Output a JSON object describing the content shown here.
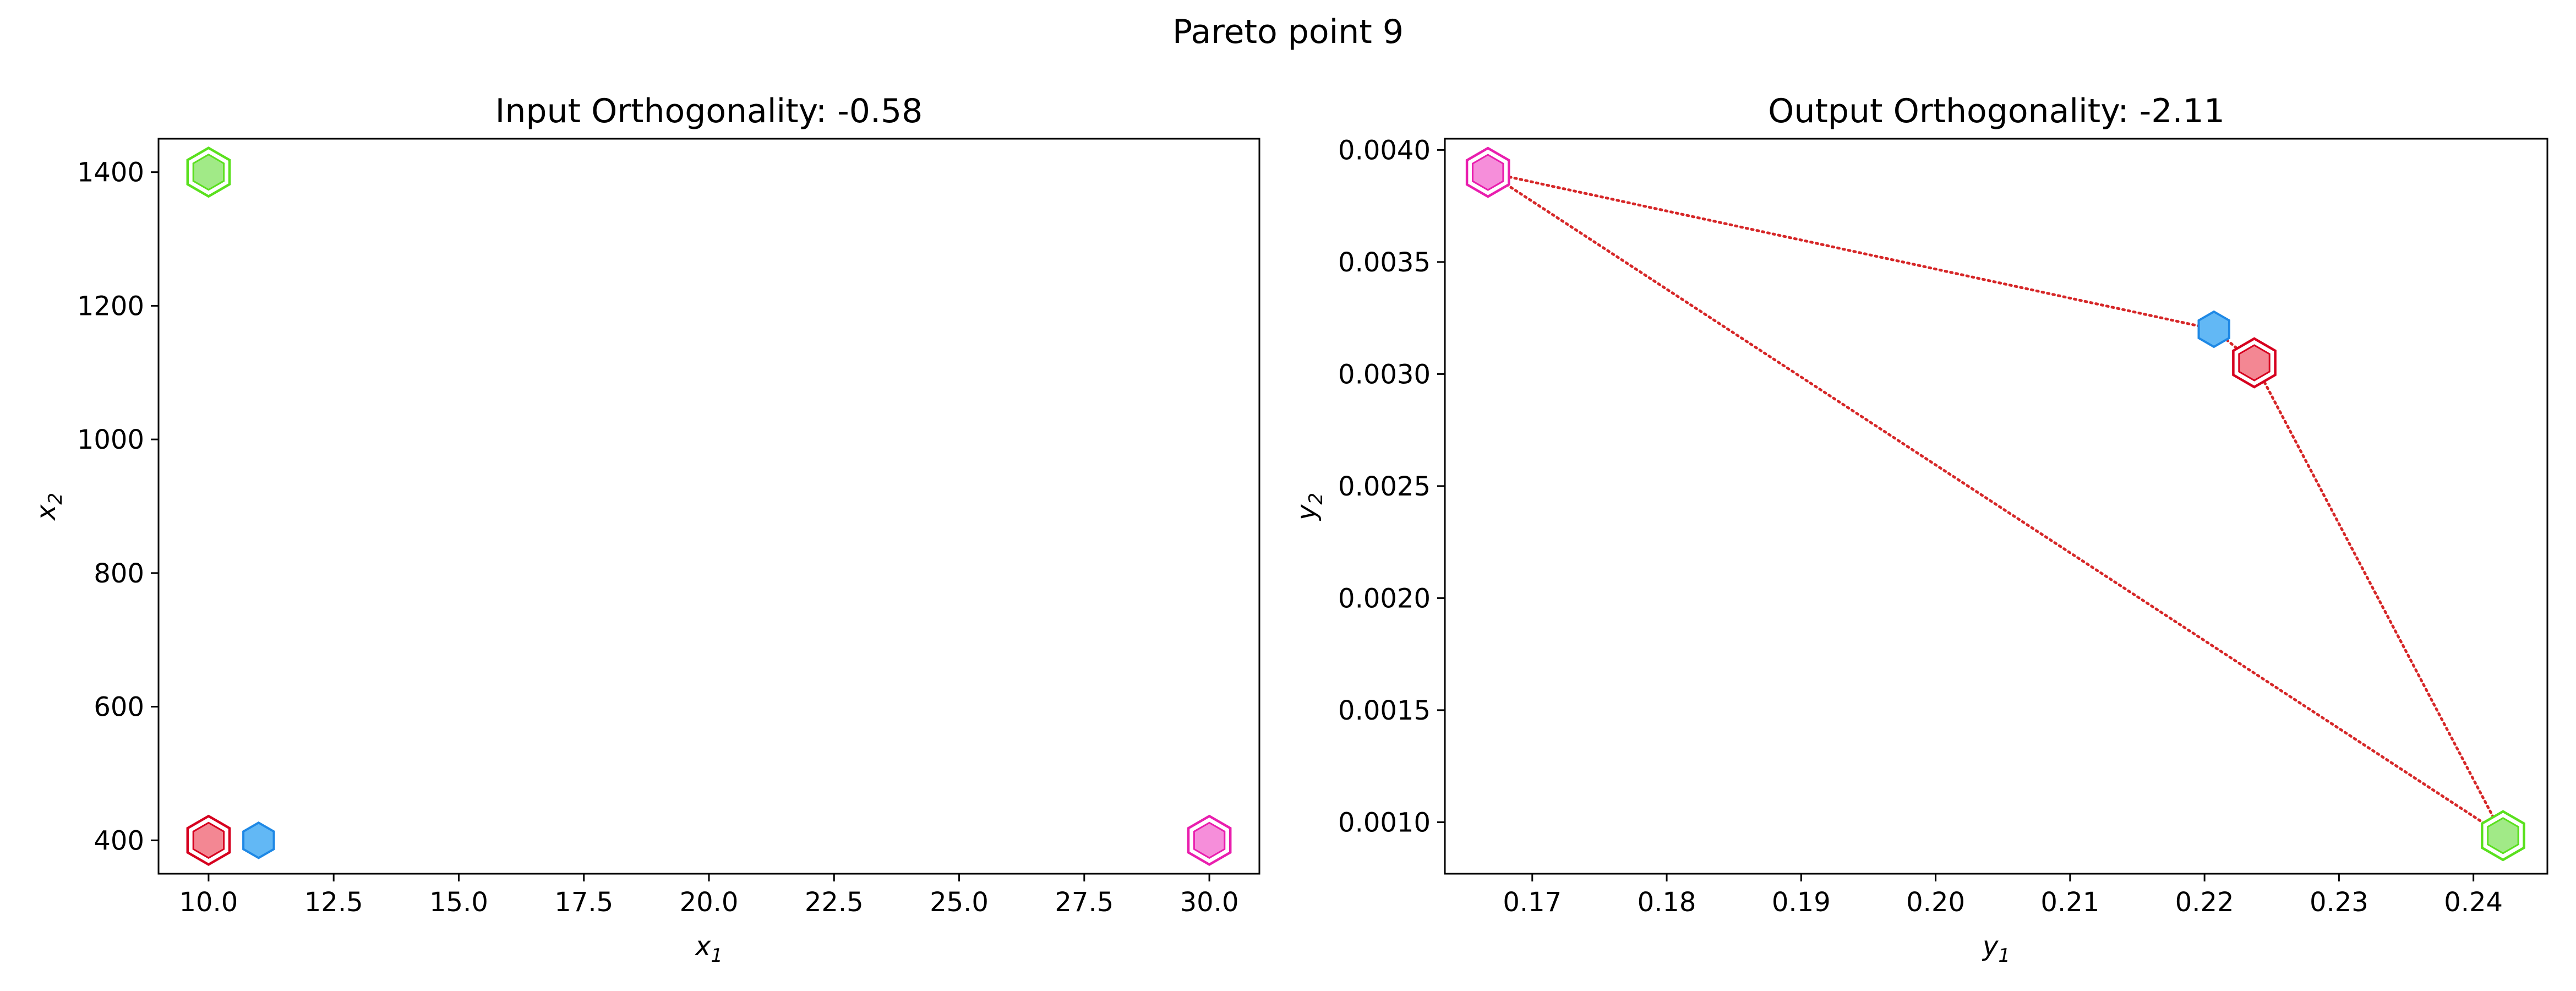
{
  "figure": {
    "title": "Pareto point 9"
  },
  "chart_data": [
    {
      "type": "scatter",
      "title": "Input Orthogonality: -0.58",
      "xlabel": {
        "base": "x",
        "sub": "1"
      },
      "ylabel": {
        "base": "x",
        "sub": "2"
      },
      "xlim": [
        9.0,
        31.0
      ],
      "ylim": [
        350,
        1450
      ],
      "xticks": [
        10.0,
        12.5,
        15.0,
        17.5,
        20.0,
        22.5,
        25.0,
        27.5,
        30.0
      ],
      "xtick_labels": [
        "10.0",
        "12.5",
        "15.0",
        "17.5",
        "20.0",
        "22.5",
        "25.0",
        "27.5",
        "30.0"
      ],
      "yticks": [
        400,
        600,
        800,
        1000,
        1200,
        1400
      ],
      "ytick_labels": [
        "400",
        "600",
        "800",
        "1000",
        "1200",
        "1400"
      ],
      "points": [
        {
          "x": 10,
          "y": 400,
          "fill": "#f27a87",
          "edge": "#d6001f",
          "ring": true
        },
        {
          "x": 11,
          "y": 400,
          "fill": "#62b8f5",
          "edge": "#1e88e5",
          "ring": false
        },
        {
          "x": 10,
          "y": 1400,
          "fill": "#97e87a",
          "edge": "#5ae01e",
          "ring": true
        },
        {
          "x": 30,
          "y": 400,
          "fill": "#f582d6",
          "edge": "#e91eae",
          "ring": true
        }
      ]
    },
    {
      "type": "scatter",
      "title": "Output Orthogonality: -2.11",
      "xlabel": {
        "base": "y",
        "sub": "1"
      },
      "ylabel": {
        "base": "y",
        "sub": "2"
      },
      "xlim": [
        0.1635,
        0.2455
      ],
      "ylim": [
        0.00077,
        0.00405
      ],
      "xticks": [
        0.17,
        0.18,
        0.19,
        0.2,
        0.21,
        0.22,
        0.23,
        0.24
      ],
      "xtick_labels": [
        "0.17",
        "0.18",
        "0.19",
        "0.20",
        "0.21",
        "0.22",
        "0.23",
        "0.24"
      ],
      "yticks": [
        0.001,
        0.0015,
        0.002,
        0.0025,
        0.003,
        0.0035,
        0.004
      ],
      "ytick_labels": [
        "0.0010",
        "0.0015",
        "0.0020",
        "0.0025",
        "0.0030",
        "0.0035",
        "0.0040"
      ],
      "points": [
        {
          "x": 0.1667,
          "y": 0.0039,
          "fill": "#f582d6",
          "edge": "#e91eae",
          "ring": true
        },
        {
          "x": 0.2207,
          "y": 0.0032,
          "fill": "#62b8f5",
          "edge": "#1e88e5",
          "ring": false
        },
        {
          "x": 0.2237,
          "y": 0.00305,
          "fill": "#f27a87",
          "edge": "#d6001f",
          "ring": true
        },
        {
          "x": 0.2422,
          "y": 0.00094,
          "fill": "#97e87a",
          "edge": "#5ae01e",
          "ring": true
        }
      ],
      "connector_color": "#d62728",
      "connectors": [
        [
          {
            "x": 0.1667,
            "y": 0.0039
          },
          {
            "x": 0.2207,
            "y": 0.0032
          }
        ],
        [
          {
            "x": 0.2207,
            "y": 0.0032
          },
          {
            "x": 0.2237,
            "y": 0.00305
          }
        ],
        [
          {
            "x": 0.2237,
            "y": 0.00305
          },
          {
            "x": 0.2422,
            "y": 0.00094
          }
        ],
        [
          {
            "x": 0.1667,
            "y": 0.0039
          },
          {
            "x": 0.2422,
            "y": 0.00094
          }
        ]
      ]
    }
  ]
}
